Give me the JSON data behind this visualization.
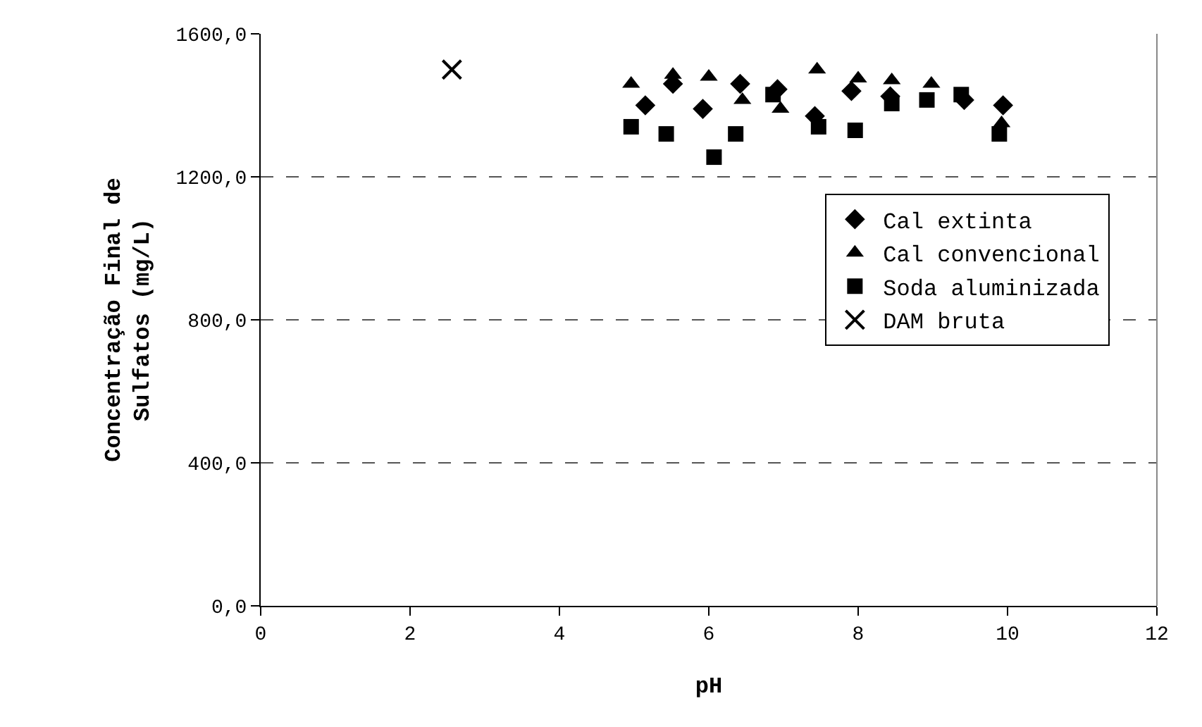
{
  "chart_data": {
    "type": "scatter",
    "xlabel": "pH",
    "ylabel": "Concentração Final de\nSulfatos (mg/L)",
    "xlim": [
      0,
      12
    ],
    "xticks": [
      0,
      2,
      4,
      6,
      8,
      10,
      12
    ],
    "ylim": [
      0,
      1600
    ],
    "yticks": [
      {
        "value": 0,
        "label": "0,0"
      },
      {
        "value": 400,
        "label": "400,0"
      },
      {
        "value": 800,
        "label": "800,0"
      },
      {
        "value": 1200,
        "label": "1200,0"
      },
      {
        "value": 1600,
        "label": "1600,0"
      }
    ],
    "grid": "y",
    "legend": "right",
    "series": [
      {
        "name": "Cal extinta",
        "color": "#000000",
        "marker": "diamond",
        "x": [
          5.15,
          5.52,
          5.92,
          6.42,
          6.92,
          7.42,
          7.91,
          8.43,
          9.42,
          9.94
        ],
        "values": [
          1400,
          1460,
          1390,
          1460,
          1445,
          1370,
          1440,
          1425,
          1415,
          1400
        ]
      },
      {
        "name": "Cal convencional",
        "color": "#000000",
        "marker": "triangle",
        "x": [
          4.96,
          5.52,
          6.0,
          6.45,
          6.96,
          7.45,
          8.0,
          8.45,
          8.98,
          9.92
        ],
        "values": [
          1460,
          1485,
          1480,
          1415,
          1390,
          1500,
          1475,
          1470,
          1460,
          1350
        ]
      },
      {
        "name": "Soda aluminizada",
        "color": "#000000",
        "marker": "square",
        "x": [
          4.96,
          5.43,
          6.07,
          6.36,
          6.86,
          7.47,
          7.96,
          8.45,
          8.92,
          9.38,
          9.89
        ],
        "values": [
          1340,
          1320,
          1255,
          1320,
          1430,
          1340,
          1330,
          1405,
          1415,
          1430,
          1320
        ]
      },
      {
        "name": "DAM bruta",
        "color": "#000000",
        "marker": "cross",
        "x": [
          2.56
        ],
        "values": [
          1500
        ]
      }
    ]
  }
}
